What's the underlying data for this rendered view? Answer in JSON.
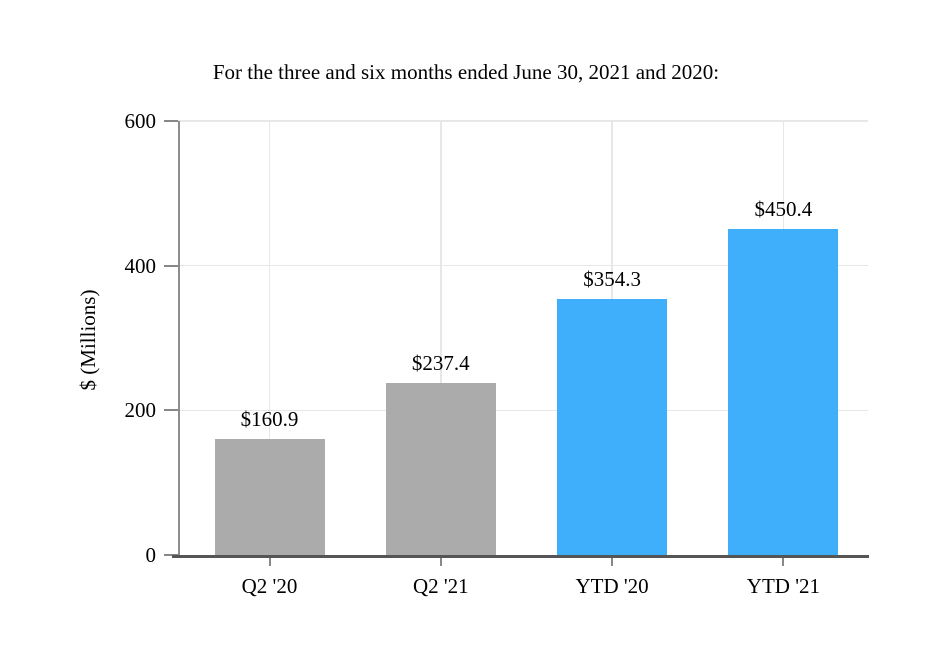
{
  "chart_data": {
    "type": "bar",
    "title": "For the three and six months ended June 30, 2021 and 2020:",
    "categories": [
      "Q2 '20",
      "Q2 '21",
      "YTD '20",
      "YTD '21"
    ],
    "values": [
      160.9,
      237.4,
      354.3,
      450.4
    ],
    "bar_labels": [
      "$160.9",
      "$237.4",
      "$354.3",
      "$450.4"
    ],
    "bar_colors": [
      "#ABABAB",
      "#ABABAB",
      "#3FAEFB",
      "#3FAEFB"
    ],
    "xlabel": "",
    "ylabel": "$ (Millions)",
    "ylim": [
      0,
      600
    ],
    "yticks": [
      0,
      200,
      400,
      600
    ],
    "grid": true,
    "legend_position": "none",
    "colors": {
      "gray_bar": "#ABABAB",
      "blue_bar": "#3FAEFB",
      "gridline": "#E7E7E7",
      "axis_line": "#555555",
      "spine": "#8D8D8D",
      "tick": "#888888",
      "text": "#000000",
      "background": "#FFFFFF"
    }
  }
}
